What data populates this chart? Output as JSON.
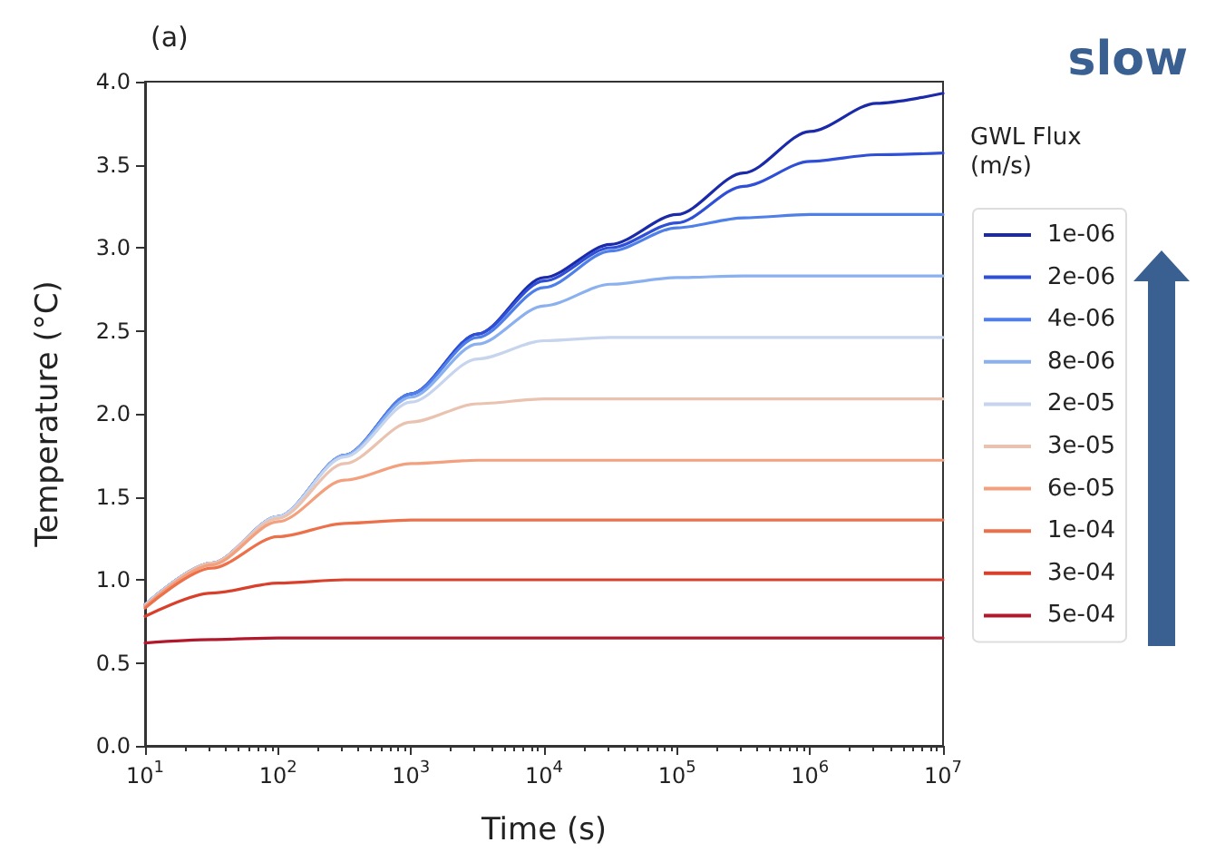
{
  "chart_data": {
    "type": "line",
    "title": "(a)",
    "xlabel": "Time (s)",
    "ylabel": "Temperature (°C)",
    "legend_title": "GWL Flux\n(m/s)",
    "annotations": [
      "slow"
    ],
    "log": "x",
    "grid": false,
    "legend": "right",
    "marker": "none",
    "line_style": "solid",
    "xlim": [
      10,
      10000000
    ],
    "xticks": [
      {
        "value": 10,
        "label": "10$^{1}$"
      },
      {
        "value": 100,
        "label": "10$^{2}$"
      },
      {
        "value": 1000,
        "label": "10$^{3}$"
      },
      {
        "value": 10000,
        "label": "10$^{4}$"
      },
      {
        "value": 100000,
        "label": "10$^{5}$"
      },
      {
        "value": 1000000,
        "label": "10$^{6}$"
      },
      {
        "value": 10000000,
        "label": "10$^{7}$"
      }
    ],
    "ylim": [
      0,
      4
    ],
    "yticks": [
      {
        "value": 0,
        "label": "0.0"
      },
      {
        "value": 0.5,
        "label": "0.5"
      },
      {
        "value": 1,
        "label": "1.0"
      },
      {
        "value": 1.5,
        "label": "1.5"
      },
      {
        "value": 2,
        "label": "2.0"
      },
      {
        "value": 2.5,
        "label": "2.5"
      },
      {
        "value": 3,
        "label": "3.0"
      },
      {
        "value": 3.5,
        "label": "3.5"
      },
      {
        "value": 4,
        "label": "4.0"
      }
    ],
    "x": [
      10,
      31.6,
      100,
      316,
      1000,
      3160,
      10000,
      31600,
      100000,
      316000,
      1000000,
      3160000,
      10000000
    ],
    "series": [
      {
        "name": "1e-06",
        "color": "#1b2aa8",
        "values": [
          0.85,
          1.1,
          1.38,
          1.75,
          2.12,
          2.48,
          2.82,
          3.02,
          3.2,
          3.45,
          3.7,
          3.87,
          3.93
        ]
      },
      {
        "name": "2e-06",
        "color": "#2f4fd6",
        "values": [
          0.85,
          1.1,
          1.38,
          1.75,
          2.12,
          2.48,
          2.8,
          3.0,
          3.15,
          3.37,
          3.52,
          3.56,
          3.57
        ]
      },
      {
        "name": "4e-06",
        "color": "#4f7fe8",
        "values": [
          0.85,
          1.1,
          1.38,
          1.75,
          2.12,
          2.46,
          2.76,
          2.98,
          3.12,
          3.18,
          3.2,
          3.2,
          3.2
        ]
      },
      {
        "name": "8e-06",
        "color": "#8ab0f0",
        "values": [
          0.85,
          1.1,
          1.38,
          1.75,
          2.1,
          2.42,
          2.65,
          2.78,
          2.82,
          2.83,
          2.83,
          2.83,
          2.83
        ]
      },
      {
        "name": "2e-05",
        "color": "#c6d4ee",
        "values": [
          0.85,
          1.1,
          1.38,
          1.74,
          2.07,
          2.33,
          2.44,
          2.46,
          2.46,
          2.46,
          2.46,
          2.46,
          2.46
        ]
      },
      {
        "name": "3e-05",
        "color": "#eac2b0",
        "values": [
          0.84,
          1.1,
          1.37,
          1.7,
          1.95,
          2.06,
          2.09,
          2.09,
          2.09,
          2.09,
          2.09,
          2.09,
          2.09
        ]
      },
      {
        "name": "6e-05",
        "color": "#f3a07e",
        "values": [
          0.84,
          1.09,
          1.35,
          1.6,
          1.7,
          1.72,
          1.72,
          1.72,
          1.72,
          1.72,
          1.72,
          1.72,
          1.72
        ]
      },
      {
        "name": "1e-04",
        "color": "#ec7049",
        "values": [
          0.83,
          1.07,
          1.26,
          1.34,
          1.36,
          1.36,
          1.36,
          1.36,
          1.36,
          1.36,
          1.36,
          1.36,
          1.36
        ]
      },
      {
        "name": "3e-04",
        "color": "#d9402c",
        "values": [
          0.78,
          0.92,
          0.98,
          1.0,
          1.0,
          1.0,
          1.0,
          1.0,
          1.0,
          1.0,
          1.0,
          1.0,
          1.0
        ]
      },
      {
        "name": "5e-04",
        "color": "#b2182b",
        "values": [
          0.62,
          0.64,
          0.65,
          0.65,
          0.65,
          0.65,
          0.65,
          0.65,
          0.65,
          0.65,
          0.65,
          0.65,
          0.65
        ]
      }
    ]
  }
}
